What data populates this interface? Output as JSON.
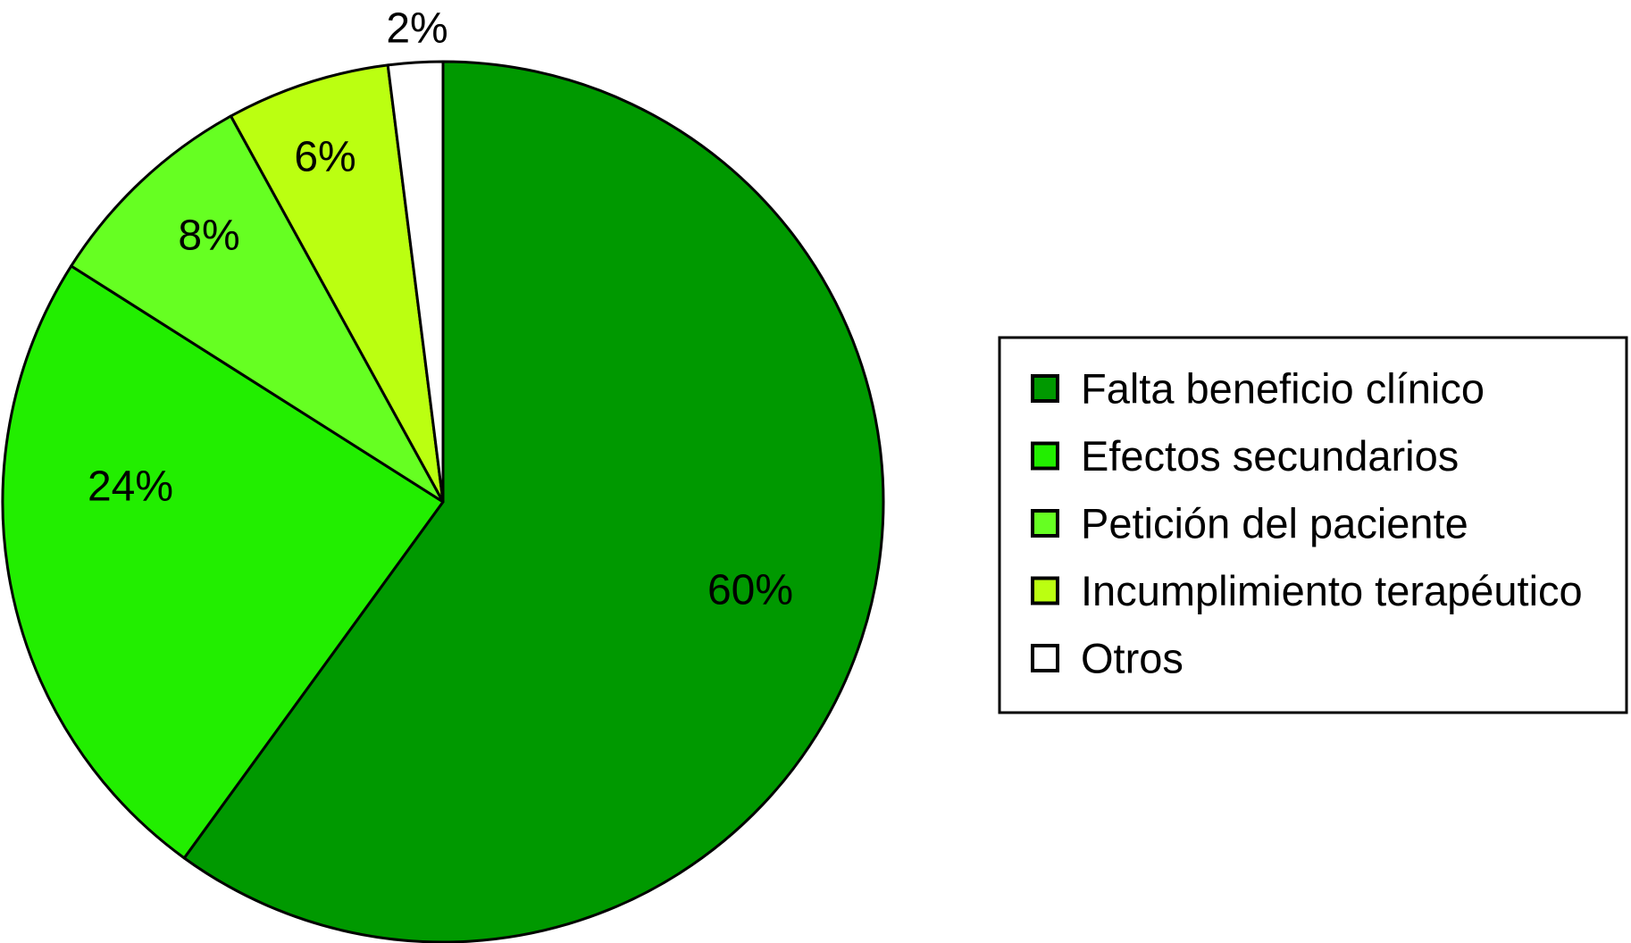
{
  "chart_data": {
    "type": "pie",
    "title": "",
    "start_angle_deg": 0,
    "direction": "clockwise",
    "legend_position": "right",
    "slices": [
      {
        "name": "Falta beneficio clínico",
        "value": 60,
        "label": "60%",
        "color": "#009900"
      },
      {
        "name": "Efectos secundarios",
        "value": 24,
        "label": "24%",
        "color": "#22ee00"
      },
      {
        "name": "Petición del paciente",
        "value": 8,
        "label": "8%",
        "color": "#66ff22"
      },
      {
        "name": "Incumplimiento terapéutico",
        "value": 6,
        "label": "6%",
        "color": "#bbff11"
      },
      {
        "name": "Otros",
        "value": 2,
        "label": "2%",
        "color": "#ffffff"
      }
    ]
  }
}
